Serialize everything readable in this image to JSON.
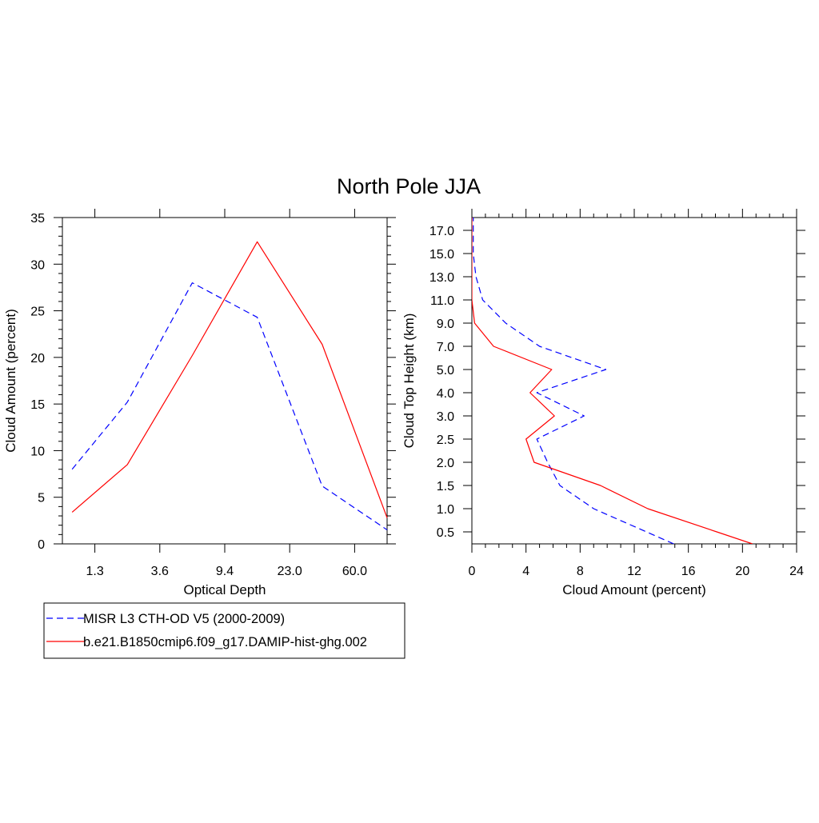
{
  "title": "North Pole JJA",
  "chart_data": [
    {
      "type": "line",
      "xlabel": "Optical Depth",
      "ylabel": "Cloud Amount (percent)",
      "x_tick_labels": [
        "1.3",
        "3.6",
        "9.4",
        "23.0",
        "60.0"
      ],
      "y_tick_labels": [
        "0",
        "5",
        "10",
        "15",
        "20",
        "25",
        "30",
        "35"
      ],
      "categories": [
        "1.3",
        "3.6",
        "9.4",
        "23.0",
        "60.0"
      ],
      "ylim": [
        0,
        35
      ],
      "series": [
        {
          "name": "MISR L3 CTH-OD V5 (2000-2009)",
          "color": "#0000ff",
          "style": "dashed",
          "x": [
            0.15,
            1.0,
            2.0,
            3.0,
            4.0,
            5.0
          ],
          "values": [
            8.0,
            15.2,
            28.0,
            24.3,
            6.2,
            1.5
          ]
        },
        {
          "name": "b.e21.B1850cmip6.f09_g17.DAMIP-hist-ghg.002",
          "color": "#ff0000",
          "style": "solid",
          "x": [
            0.15,
            1.0,
            2.0,
            3.0,
            4.0,
            5.0
          ],
          "values": [
            3.4,
            8.5,
            20.2,
            32.4,
            21.4,
            2.8
          ]
        }
      ]
    },
    {
      "type": "line",
      "xlabel": "Cloud Amount (percent)",
      "ylabel": "Cloud Top Height (km)",
      "x_tick_labels": [
        "0",
        "4",
        "8",
        "12",
        "16",
        "20",
        "24"
      ],
      "y_tick_labels": [
        "0.5",
        "1.0",
        "1.5",
        "2.0",
        "2.5",
        "3.0",
        "4.0",
        "5.0",
        "7.0",
        "9.0",
        "11.0",
        "13.0",
        "15.0",
        "17.0"
      ],
      "xlim": [
        0,
        24
      ],
      "series": [
        {
          "name": "MISR L3 CTH-OD V5 (2000-2009)",
          "color": "#0000ff",
          "style": "dashed",
          "heights": [
            "0.5",
            "1.0",
            "1.5",
            "2.0",
            "2.5",
            "3.0",
            "4.0",
            "5.0",
            "7.0",
            "9.0",
            "11.0",
            "13.0",
            "15.0",
            "17.0"
          ],
          "values": [
            12.9,
            9.0,
            6.5,
            5.6,
            4.8,
            8.3,
            4.8,
            9.9,
            5.0,
            2.5,
            0.8,
            0.3,
            0.1,
            0.1
          ]
        },
        {
          "name": "b.e21.B1850cmip6.f09_g17.DAMIP-hist-ghg.002",
          "color": "#ff0000",
          "style": "solid",
          "heights": [
            "0.5",
            "1.0",
            "1.5",
            "2.0",
            "2.5",
            "3.0",
            "4.0",
            "5.0",
            "7.0",
            "9.0",
            "11.0",
            "13.0",
            "15.0",
            "17.0"
          ],
          "values": [
            18.1,
            13.0,
            9.5,
            4.6,
            4.0,
            6.1,
            4.3,
            5.9,
            1.6,
            0.2,
            0.0,
            0.0,
            0.0,
            0.0
          ]
        }
      ]
    }
  ],
  "legend": {
    "items": [
      {
        "label": "MISR L3 CTH-OD V5 (2000-2009)",
        "color": "#0000ff",
        "style": "dashed"
      },
      {
        "label": "b.e21.B1850cmip6.f09_g17.DAMIP-hist-ghg.002",
        "color": "#ff0000",
        "style": "solid"
      }
    ]
  }
}
